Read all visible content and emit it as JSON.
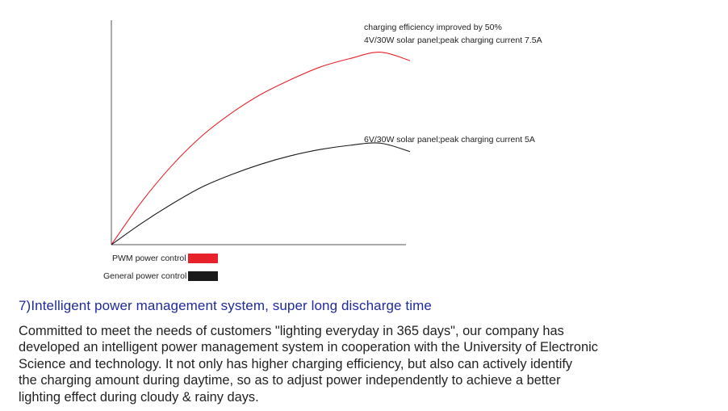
{
  "chart_data": {
    "type": "line",
    "title": "",
    "xlabel": "",
    "ylabel": "",
    "grid": false,
    "legend_placement": "bottom-left",
    "x": [
      0,
      0.1,
      0.2,
      0.3,
      0.4,
      0.5,
      0.6,
      0.7,
      0.8,
      0.9,
      1.0
    ],
    "xlim": [
      0,
      1
    ],
    "ylim": [
      0,
      1
    ],
    "series": [
      {
        "name": "PWM power control",
        "color": "#e8222b",
        "values": [
          0,
          0.2,
          0.37,
          0.51,
          0.62,
          0.71,
          0.78,
          0.84,
          0.88,
          0.91,
          0.87
        ]
      },
      {
        "name": "General power control",
        "color": "#1a1a1a",
        "values": [
          0,
          0.1,
          0.19,
          0.27,
          0.33,
          0.38,
          0.42,
          0.45,
          0.47,
          0.48,
          0.44
        ]
      }
    ],
    "annotations": [
      "charging efficiency improved by 50%",
      "4V/30W solar panel;peak charging current 7.5A",
      "6V/30W solar panel;peak charging current 5A"
    ]
  },
  "legend": {
    "items": [
      {
        "label": "PWM power control",
        "color": "#e8222b"
      },
      {
        "label": "General power control",
        "color": "#1a1a1a"
      }
    ]
  },
  "section": {
    "heading": "7)Intelligent power management system, super long discharge time",
    "body_lines": [
      "Committed to meet the needs of customers \"lighting everyday in 365 days\", our company has",
      "developed an intelligent power management system in cooperation with the University of Electronic",
      "Science and technology. It not only has higher charging efficiency, but also can actively identify",
      "the charging amount during daytime, so as to adjust power independently to achieve a better",
      "lighting effect during cloudy & rainy days."
    ]
  }
}
